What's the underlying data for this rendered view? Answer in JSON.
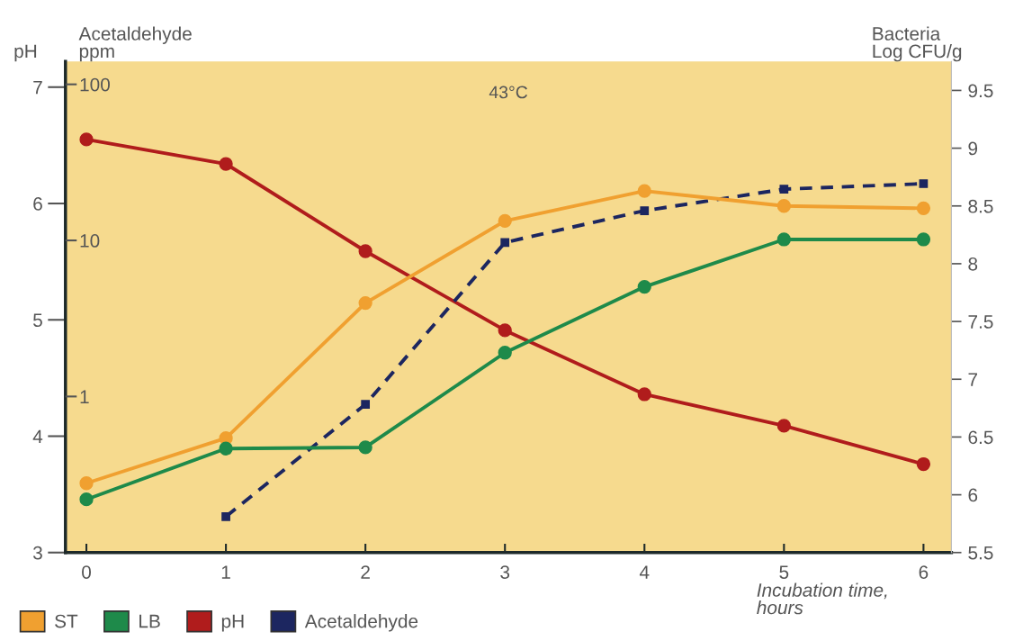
{
  "chart_data": {
    "type": "line",
    "title": "43°C",
    "xlabel": "Incubation time,\nhours",
    "ylabel": "pH",
    "y2label": "Acetaldehyde\nppm",
    "y3label": "Bacteria\nLog CFU/g",
    "x": [
      0,
      1,
      2,
      3,
      4,
      5,
      6
    ],
    "xlim": [
      -0.15,
      6.2
    ],
    "xticks": [
      0,
      1,
      2,
      3,
      4,
      5,
      6
    ],
    "ylim": [
      3,
      7.22
    ],
    "yticks": [
      3,
      4,
      5,
      6,
      7
    ],
    "y2lim": [
      0.1,
      140
    ],
    "y2ticks": [
      1,
      10,
      100
    ],
    "log": "y2",
    "y3lim": [
      5.5,
      9.75
    ],
    "y3ticks": [
      5.5,
      6,
      6.5,
      7,
      7.5,
      8,
      8.5,
      9,
      9.5
    ],
    "legend": "bottom",
    "marker": "circle",
    "line_style": "solid",
    "series": [
      {
        "name": "ST",
        "color": "#f0a030",
        "axis": "y3",
        "values": [
          6.1,
          6.49,
          7.66,
          8.37,
          8.63,
          8.5,
          8.48
        ]
      },
      {
        "name": "LB",
        "color": "#1e8a4a",
        "axis": "y3",
        "values": [
          5.96,
          6.4,
          6.41,
          7.23,
          7.8,
          8.21,
          8.21
        ]
      },
      {
        "name": "pH",
        "color": "#b01c1c",
        "axis": "y",
        "values": [
          6.55,
          6.34,
          5.59,
          4.91,
          4.36,
          4.09,
          3.76
        ]
      },
      {
        "name": "Acetaldehyde",
        "color": "#1c2660",
        "axis": "y2",
        "x": [
          1,
          2,
          3,
          4,
          5,
          6
        ],
        "values": [
          0.17,
          0.89,
          9.7,
          15.5,
          21.3,
          23.1
        ],
        "line_style": "dashed",
        "marker": "square"
      }
    ]
  }
}
